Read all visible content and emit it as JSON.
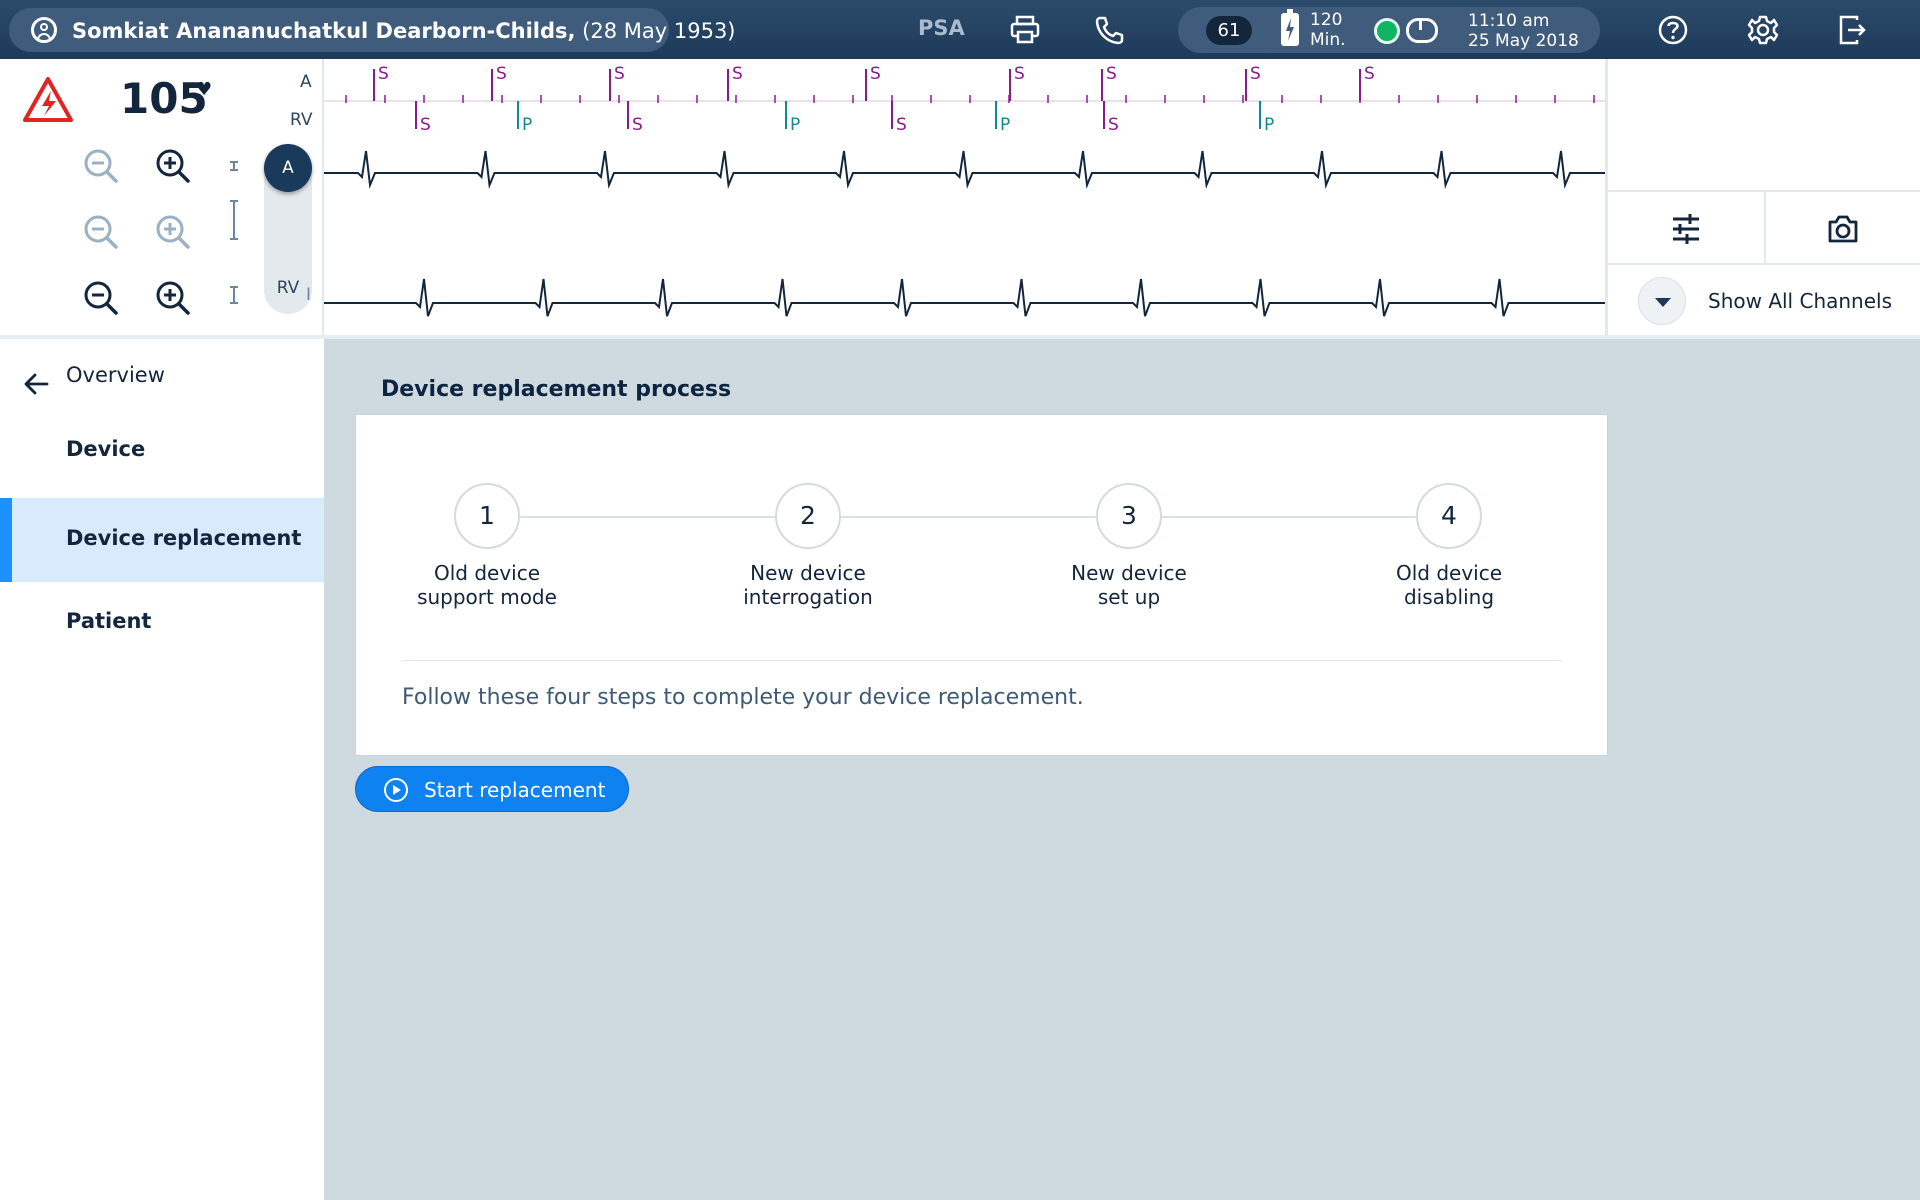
{
  "topbar": {
    "patient_name": "Somkiat Anananuchatkul Dearborn-Childs,",
    "patient_dob": " (28 May 1953)",
    "psa_label": "PSA",
    "badge_count": "61",
    "battery_line1": "120",
    "battery_line2": "Min.",
    "time": "11:10 am",
    "date": "25 May 2018",
    "icons": [
      "user-icon",
      "print-icon",
      "phone-icon",
      "battery-icon",
      "status-dot",
      "toggle-icon",
      "help-icon",
      "settings-icon",
      "logout-icon"
    ]
  },
  "ecg": {
    "heart_rate": "105",
    "heart_symbol": "♥",
    "channel_a": "A",
    "channel_rv": "RV",
    "lead_label": "I",
    "toggle_a": "A",
    "toggle_rv": "RV",
    "marker_s": "S",
    "marker_p": "P",
    "show_all_channels": "Show All Channels",
    "colors": {
      "marker_s": "#8b1a8b",
      "marker_p": "#138a8a",
      "trace": "#13263c"
    }
  },
  "sidebar": {
    "back_label": "Overview",
    "items": [
      {
        "label": "Device",
        "active": false
      },
      {
        "label": "Device replacement",
        "active": true
      },
      {
        "label": "Patient",
        "active": false
      }
    ]
  },
  "main": {
    "title": "Device replacement process",
    "steps": [
      {
        "number": "1",
        "line1": "Old device",
        "line2": "support mode"
      },
      {
        "number": "2",
        "line1": "New device",
        "line2": "interrogation"
      },
      {
        "number": "3",
        "line1": "New device",
        "line2": "set up"
      },
      {
        "number": "4",
        "line1": "Old device",
        "line2": "disabling"
      }
    ],
    "description": "Follow these four steps to complete your device replacement.",
    "start_button": "Start replacement"
  },
  "accent_colors": {
    "primary": "#0f82f2",
    "active_bg": "#d8ebfd",
    "topbar": "#1e3a5a"
  }
}
